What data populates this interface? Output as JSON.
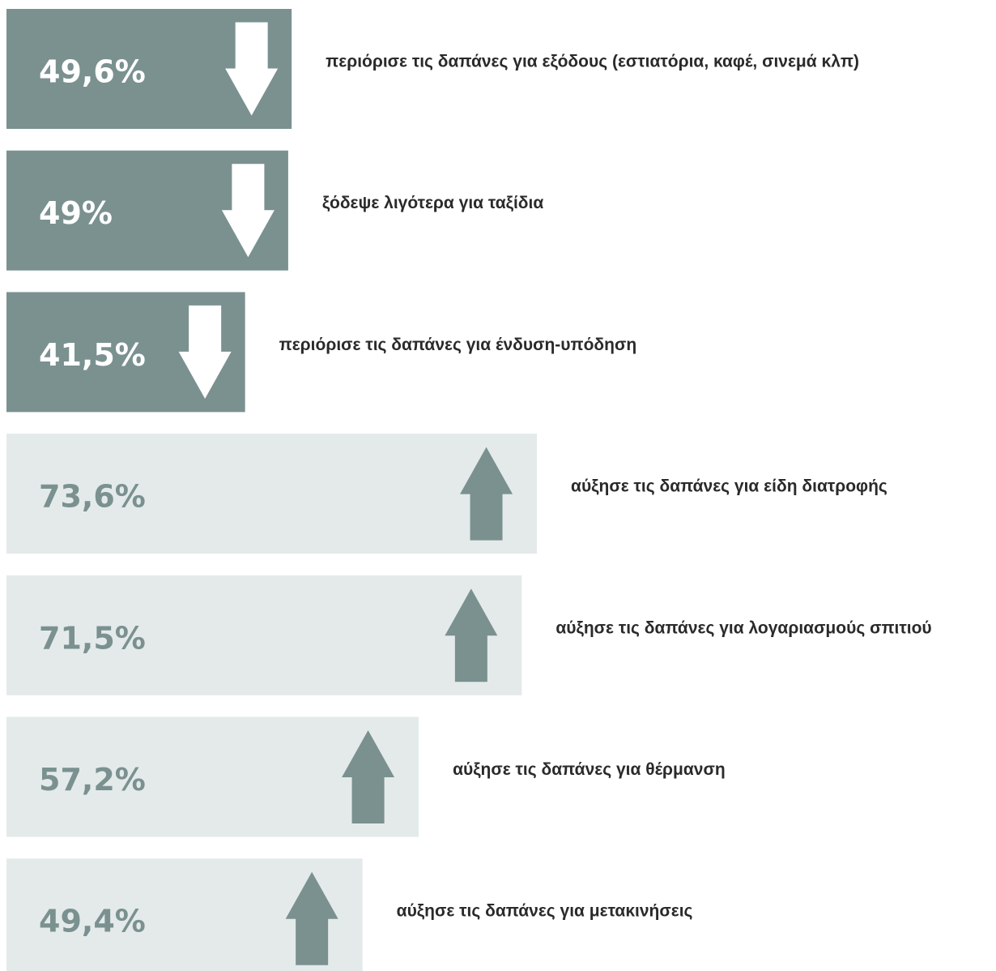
{
  "chart_data": [
    {
      "type": "bar",
      "color": "#7a9190",
      "label_color": "#ffffff",
      "arrow_color": "#ffffff",
      "arrow": "down",
      "categories": [
        "περιόρισε τις δαπάνες για εξόδους (εστιατόρια, καφέ, σινεμά κλπ)",
        "ξόδεψε λιγότερα για ταξίδια",
        "περιόρισε τις δαπάνες για ένδυση-υπόδηση"
      ],
      "values": [
        49.6,
        49,
        41.5
      ],
      "value_labels": [
        "49,6%",
        "49%",
        "41,5%"
      ]
    },
    {
      "type": "bar",
      "color": "#e4eaea",
      "label_color": "#7a9190",
      "arrow_color": "#7a9190",
      "arrow": "up",
      "categories": [
        "αύξησε τις δαπάνες για είδη διατροφής",
        "αύξησε τις δαπάνες για λογαριασμούς σπιτιού",
        "αύξησε τις δαπάνες για θέρμανση",
        "αύξησε τις δαπάνες για μετακινήσεις"
      ],
      "values": [
        73.6,
        71.5,
        57.2,
        49.4
      ],
      "value_labels": [
        "73,6%",
        "71,5%",
        "57,2%",
        "49,4%"
      ]
    }
  ]
}
